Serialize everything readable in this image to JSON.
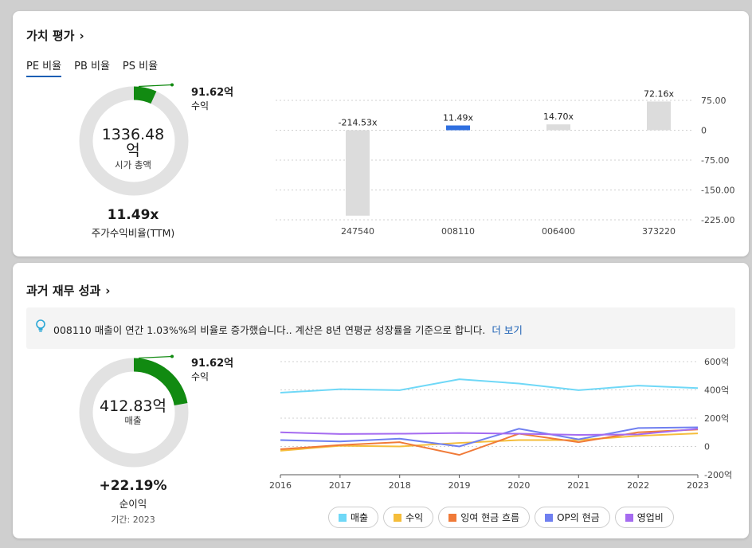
{
  "valuation": {
    "title": "가치 평가",
    "tabs": [
      {
        "label": "PE 비율",
        "active": true
      },
      {
        "label": "PB 비율",
        "active": false
      },
      {
        "label": "PS 비율",
        "active": false
      }
    ],
    "donut": {
      "center_value": "1336.48",
      "center_unit": "억",
      "center_label": "시가 총액",
      "fill_fraction": 0.068,
      "annotation_value": "91.62억",
      "annotation_label": "수익",
      "track_color": "#e2e2e2",
      "fill_color": "#118a11"
    },
    "ratio_value": "11.49x",
    "ratio_label": "주가수익비율(TTM)"
  },
  "chart_data": [
    {
      "type": "bar",
      "categories": [
        "247540",
        "008110",
        "006400",
        "373220"
      ],
      "values": [
        -214.53,
        11.49,
        14.7,
        72.16
      ],
      "data_labels": [
        "-214.53x",
        "11.49x",
        "14.70x",
        "72.16x"
      ],
      "highlight_index": 1,
      "ylim": [
        -225,
        75
      ],
      "yticks": [
        75,
        0,
        -75,
        -150,
        -225
      ],
      "ytick_labels": [
        "75.00",
        "0",
        "-75.00",
        "-150.00",
        "-225.00"
      ],
      "colors": {
        "default": "#dcdcdc",
        "highlight": "#2f6fe0"
      }
    },
    {
      "type": "line",
      "x": [
        "2016",
        "2017",
        "2018",
        "2019",
        "2020",
        "2021",
        "2022",
        "2023"
      ],
      "ylim": [
        -200,
        600
      ],
      "yticks": [
        600,
        400,
        200,
        0,
        -200
      ],
      "ytick_labels": [
        "600억",
        "400억",
        "200억",
        "0",
        "-200억"
      ],
      "series": [
        {
          "name": "매출",
          "color": "#6fd8f7",
          "values": [
            380,
            405,
            398,
            475,
            445,
            398,
            430,
            413
          ]
        },
        {
          "name": "수익",
          "color": "#f5bd3a",
          "values": [
            -30,
            5,
            0,
            25,
            45,
            45,
            75,
            92
          ]
        },
        {
          "name": "잉여 현금 흐름",
          "color": "#f07a38",
          "values": [
            -20,
            10,
            30,
            -60,
            90,
            30,
            100,
            120
          ]
        },
        {
          "name": "OP의 현금",
          "color": "#6f7ff0",
          "values": [
            45,
            35,
            55,
            0,
            125,
            50,
            130,
            135
          ]
        },
        {
          "name": "영업비",
          "color": "#a56bf0",
          "values": [
            100,
            88,
            90,
            95,
            90,
            82,
            85,
            125
          ]
        }
      ]
    }
  ],
  "performance": {
    "title": "과거 재무 성과",
    "insight_text": "008110 매출이 연간 1.03%%의 비율로 증가했습니다.. 계산은 8년 연평균 성장률을 기준으로 합니다.",
    "insight_link": "더 보기",
    "donut": {
      "center_value": "412.83억",
      "center_label": "매출",
      "fill_fraction": 0.222,
      "annotation_value": "91.62억",
      "annotation_label": "수익",
      "track_color": "#e2e2e2",
      "fill_color": "#118a11"
    },
    "growth_value": "+22.19%",
    "growth_label": "순이익",
    "period_label": "기간: 2023"
  }
}
